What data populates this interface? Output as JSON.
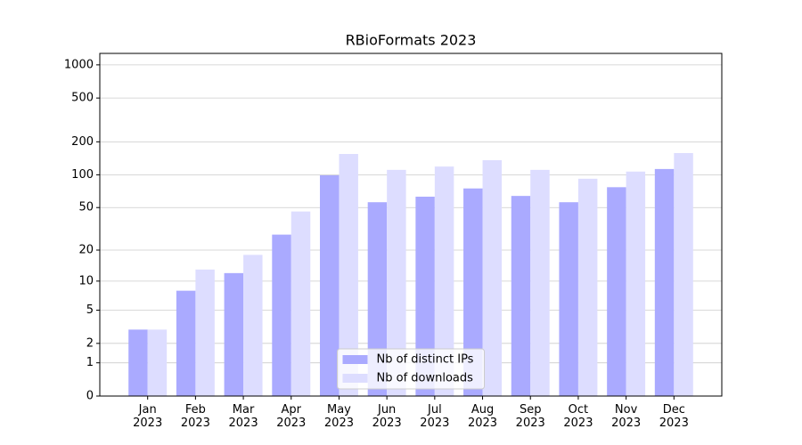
{
  "chart_data": {
    "type": "bar",
    "title": "RBioFormats 2023",
    "categories": [
      "Jan\n2023",
      "Feb\n2023",
      "Mar\n2023",
      "Apr\n2023",
      "May\n2023",
      "Jun\n2023",
      "Jul\n2023",
      "Aug\n2023",
      "Sep\n2023",
      "Oct\n2023",
      "Nov\n2023",
      "Dec\n2023"
    ],
    "series": [
      {
        "name": "Nb of distinct IPs",
        "color": "#aaaaff",
        "values": [
          3,
          8,
          12,
          28,
          99,
          56,
          63,
          75,
          64,
          56,
          77,
          113
        ]
      },
      {
        "name": "Nb of downloads",
        "color": "#ddddff",
        "values": [
          3,
          13,
          18,
          46,
          155,
          111,
          119,
          136,
          111,
          92,
          107,
          158
        ]
      }
    ],
    "scale": "log1p",
    "ylim": [
      0,
      1270
    ],
    "yticks": [
      0,
      1,
      2,
      5,
      10,
      20,
      50,
      100,
      200,
      500,
      1000
    ],
    "grid": true,
    "legend": "lower center"
  }
}
